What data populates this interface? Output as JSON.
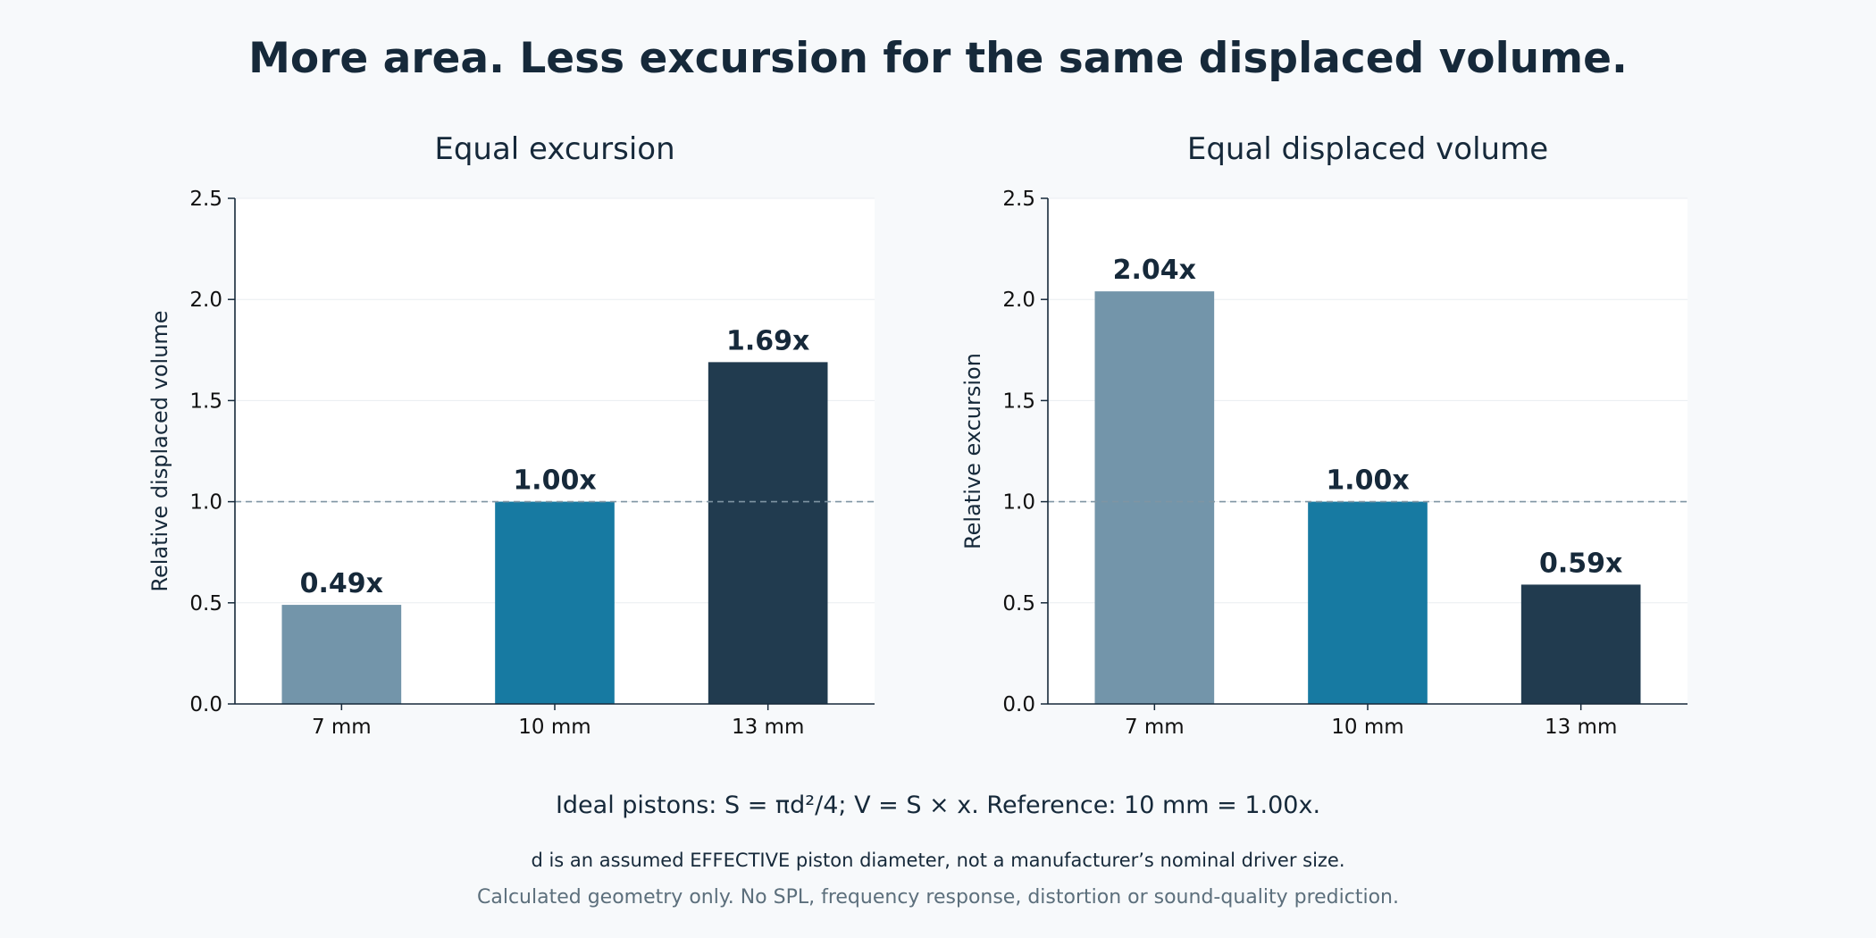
{
  "title": "More area. Less excursion for the same displaced volume.",
  "colors": {
    "background": "#f7f9fb",
    "plot_background": "#ffffff",
    "text": "#16293a",
    "muted_text": "#5c6f7c",
    "reference_line": "#7f95a3",
    "bar_7mm": "#7395aa",
    "bar_10mm": "#177aa2",
    "bar_13mm": "#213b4f"
  },
  "chart_data": [
    {
      "type": "bar",
      "title": "Equal excursion",
      "categories": [
        "7 mm",
        "10 mm",
        "13 mm"
      ],
      "values": [
        0.49,
        1.0,
        1.69
      ],
      "data_labels": [
        "0.49x",
        "1.00x",
        "1.69x"
      ],
      "xlabel": "",
      "ylabel": "Relative displaced volume",
      "ylim": [
        0,
        2.5
      ],
      "yticks": [
        "0.0",
        "0.5",
        "1.0",
        "1.5",
        "2.0",
        "2.5"
      ],
      "reference_line": 1.0,
      "grid": "horizontal, faint"
    },
    {
      "type": "bar",
      "title": "Equal displaced volume",
      "categories": [
        "7 mm",
        "10 mm",
        "13 mm"
      ],
      "values": [
        2.04,
        1.0,
        0.59
      ],
      "data_labels": [
        "2.04x",
        "1.00x",
        "0.59x"
      ],
      "xlabel": "",
      "ylabel": "Relative excursion",
      "ylim": [
        0,
        2.5
      ],
      "yticks": [
        "0.0",
        "0.5",
        "1.0",
        "1.5",
        "2.0",
        "2.5"
      ],
      "reference_line": 1.0,
      "grid": "horizontal, faint"
    }
  ],
  "footnotes": {
    "formula": "Ideal pistons: S = πd²/4; V = S × x. Reference: 10 mm = 1.00x.",
    "diameter": "d is an assumed EFFECTIVE piston diameter, not a manufacturer’s nominal driver size.",
    "disclaimer": "Calculated geometry only. No SPL, frequency response, distortion or sound-quality prediction."
  }
}
